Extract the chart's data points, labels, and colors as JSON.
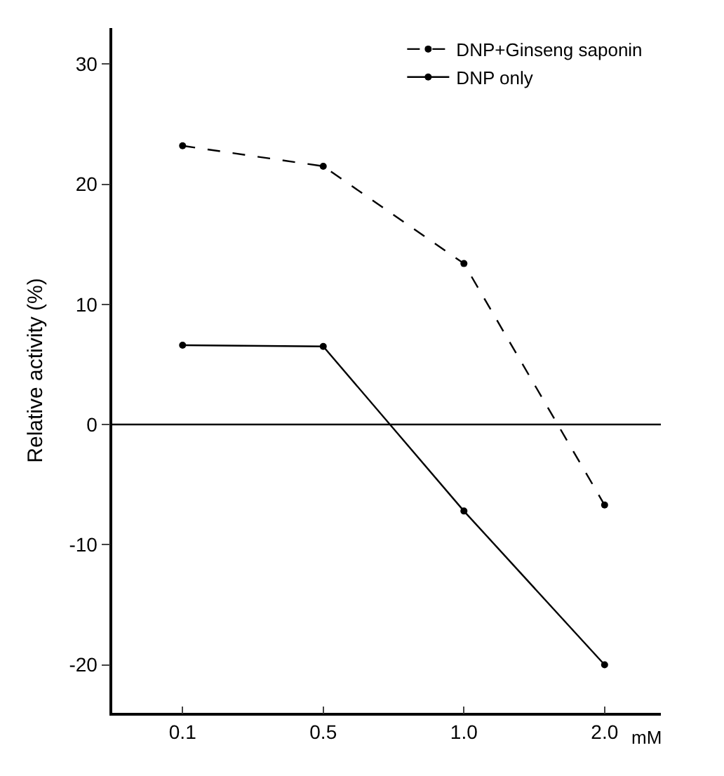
{
  "chart_data": {
    "type": "line",
    "ylabel": "Relative activity (%)",
    "xlabel": "mM",
    "categories": [
      "0.1",
      "0.5",
      "1.0",
      "2.0"
    ],
    "series": [
      {
        "name": "DNP+Ginseng saponin",
        "color": "#000000",
        "line_style": "dashed",
        "values": [
          23.2,
          21.5,
          13.4,
          -6.7
        ]
      },
      {
        "name": "DNP only",
        "color": "#000000",
        "line_style": "solid",
        "values": [
          6.6,
          6.5,
          -7.2,
          -20
        ]
      }
    ],
    "marker": "circle",
    "ylim": [
      -24,
      33
    ],
    "yticks": [
      -20,
      -10,
      0,
      10,
      20,
      30
    ],
    "ref_lines": [
      {
        "axis": "y",
        "value": 0,
        "color": "#000000"
      }
    ],
    "legend": "top right"
  }
}
